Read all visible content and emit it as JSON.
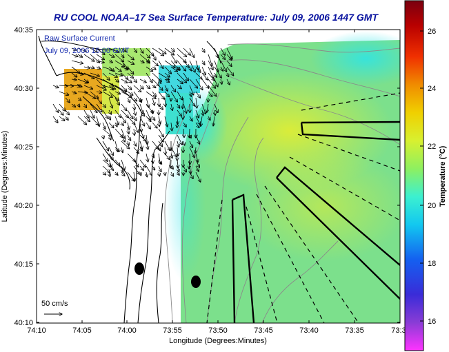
{
  "title": "RU COOL  NOAA–17  Sea Surface Temperature:  July 09, 2006 1447 GMT",
  "legend": {
    "line1": "Raw Surface Current",
    "line2": "July 09, 2006 15:00 GMT"
  },
  "scale_label": "50 cm/s",
  "xaxis": {
    "label": "Longitude (Degrees:Minutes)",
    "ticks": [
      "74:10",
      "74:05",
      "74:00",
      "73:55",
      "73:50",
      "73:45",
      "73:40",
      "73:35",
      "73:3"
    ]
  },
  "yaxis": {
    "label": "Latitude (Degrees:Minutes)",
    "ticks": [
      "40:35",
      "40:30",
      "40:25",
      "40:20",
      "40:15",
      "40:10"
    ]
  },
  "colorbar": {
    "label": "Temperature (°C)",
    "ticks": [
      "26",
      "24",
      "22",
      "20",
      "18",
      "16"
    ],
    "range": [
      15,
      27.2
    ],
    "colors": [
      "#ff33ff",
      "#8a3cd6",
      "#3a2cd8",
      "#1460f0",
      "#12c8f0",
      "#3cf0d0",
      "#8ef060",
      "#d8f030",
      "#f0d000",
      "#f08c00",
      "#f03000",
      "#b80000",
      "#7a0010"
    ]
  },
  "colors": {
    "title": "#0a14a0",
    "legend_text": "#1a2fb0",
    "sst_offshore": "#7ce08c",
    "sst_warm_patch": "#dcec3a",
    "sst_cyan": "#36e2dc",
    "sst_inshore_hot": "#e8a820",
    "coastline": "#000000",
    "bathymetry": "#8a8a8a"
  }
}
